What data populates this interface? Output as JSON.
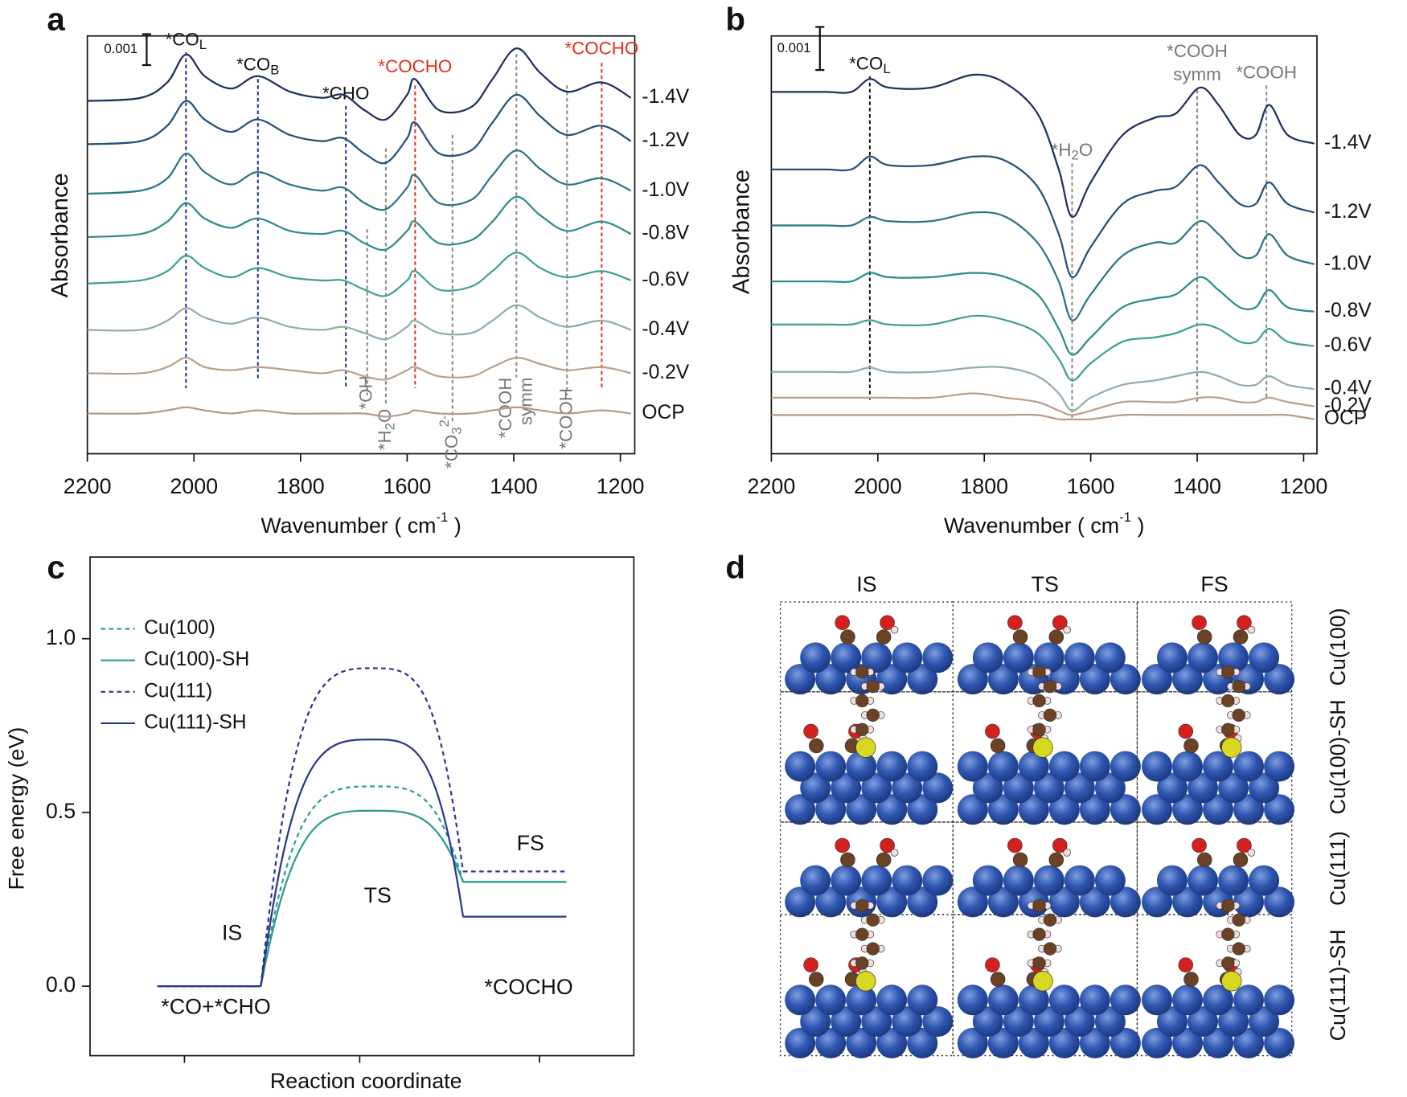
{
  "panel_labels": [
    "a",
    "b",
    "c",
    "d"
  ],
  "chart_data": [
    {
      "type": "line",
      "ylabel": "Absorbance",
      "xlabel": "Wavenumber ( cm",
      "xlabel_sup": "-1",
      "xlabel_end": " )",
      "xlim": [
        2200,
        1173
      ],
      "xticks": [
        2200,
        2000,
        1800,
        1600,
        1400,
        1200
      ],
      "ylim": [
        0,
        0.0135
      ],
      "scale_bar": {
        "value": 0.001,
        "label": "0.001"
      },
      "x": [
        2200,
        2100,
        2050,
        2015,
        1980,
        1930,
        1880,
        1820,
        1760,
        1720,
        1680,
        1640,
        1600,
        1585,
        1540,
        1480,
        1440,
        1395,
        1350,
        1300,
        1235,
        1180
      ],
      "series": [
        {
          "name": "OCP",
          "color": "#b89a86",
          "values": [
            0.0013,
            0.0013,
            0.0014,
            0.0015,
            0.0014,
            0.0013,
            0.0014,
            0.0013,
            0.0013,
            0.0013,
            0.0013,
            0.0012,
            0.0013,
            0.0014,
            0.0013,
            0.0013,
            0.0014,
            0.0015,
            0.0014,
            0.0013,
            0.0014,
            0.0013
          ]
        },
        {
          "name": "-0.2V",
          "color": "#b9a08c",
          "values": [
            0.0026,
            0.0026,
            0.0028,
            0.0031,
            0.0028,
            0.0027,
            0.0028,
            0.0027,
            0.0026,
            0.0027,
            0.0025,
            0.0024,
            0.0027,
            0.0028,
            0.0025,
            0.0025,
            0.0028,
            0.0031,
            0.0029,
            0.0027,
            0.0028,
            0.0026
          ]
        },
        {
          "name": "-0.4V",
          "color": "#8fb0a0",
          "values": [
            0.004,
            0.004,
            0.0043,
            0.0047,
            0.0044,
            0.0042,
            0.0044,
            0.0041,
            0.004,
            0.0041,
            0.0039,
            0.0037,
            0.0041,
            0.0043,
            0.0039,
            0.0039,
            0.0043,
            0.0048,
            0.0044,
            0.0041,
            0.0043,
            0.004
          ]
        },
        {
          "name": "-0.6V",
          "color": "#3fa090",
          "values": [
            0.0055,
            0.0056,
            0.0059,
            0.0064,
            0.006,
            0.0057,
            0.006,
            0.0057,
            0.0056,
            0.0056,
            0.0053,
            0.0051,
            0.0056,
            0.0059,
            0.0053,
            0.0054,
            0.0059,
            0.0065,
            0.006,
            0.0057,
            0.0059,
            0.0056
          ]
        },
        {
          "name": "-0.8V",
          "color": "#2a8c8a",
          "values": [
            0.007,
            0.0071,
            0.0075,
            0.0081,
            0.0076,
            0.0073,
            0.0076,
            0.0072,
            0.0071,
            0.0072,
            0.0068,
            0.0066,
            0.0072,
            0.0075,
            0.0068,
            0.0069,
            0.0075,
            0.0083,
            0.0077,
            0.0072,
            0.0075,
            0.0071
          ]
        },
        {
          "name": "-1.0V",
          "color": "#2a7585",
          "values": [
            0.0084,
            0.0085,
            0.0089,
            0.0097,
            0.0091,
            0.0087,
            0.0091,
            0.0087,
            0.0085,
            0.0086,
            0.0081,
            0.0079,
            0.0086,
            0.009,
            0.0081,
            0.0082,
            0.009,
            0.0098,
            0.0092,
            0.0087,
            0.0089,
            0.0085
          ]
        },
        {
          "name": "-1.2V",
          "color": "#24507a",
          "values": [
            0.01,
            0.0101,
            0.0106,
            0.0114,
            0.0108,
            0.0104,
            0.0108,
            0.0103,
            0.0101,
            0.0102,
            0.0097,
            0.0094,
            0.0102,
            0.0107,
            0.0097,
            0.0098,
            0.0107,
            0.0116,
            0.0109,
            0.0103,
            0.0106,
            0.0101
          ]
        },
        {
          "name": "-1.4V",
          "color": "#1c2f5e",
          "values": [
            0.0114,
            0.0115,
            0.012,
            0.0129,
            0.0122,
            0.0118,
            0.0122,
            0.0117,
            0.0115,
            0.0116,
            0.0111,
            0.0108,
            0.0116,
            0.0121,
            0.0111,
            0.0112,
            0.0121,
            0.0131,
            0.0123,
            0.0117,
            0.012,
            0.0115
          ]
        }
      ],
      "annotations": [
        {
          "x": 2015,
          "text": "*CO",
          "sub": "L",
          "color": "#1c2f8a",
          "label_color": "#111111",
          "position": "top"
        },
        {
          "x": 1880,
          "text": "*CO",
          "sub": "B",
          "color": "#1c2f8a",
          "label_color": "#111111",
          "position": "top"
        },
        {
          "x": 1715,
          "text": "*CHO",
          "color": "#1c2f8a",
          "label_color": "#111111",
          "position": "top"
        },
        {
          "x": 1585,
          "text": "*COCHO",
          "color": "#e0301e",
          "label_color": "#e0301e",
          "position": "top"
        },
        {
          "x": 1235,
          "text": "*COCHO",
          "color": "#e0301e",
          "label_color": "#e0301e",
          "position": "top"
        },
        {
          "x": 1675,
          "text": "*OH",
          "color": "#888888",
          "label_color": "#777777",
          "position": "bottom"
        },
        {
          "x": 1640,
          "text": "*H",
          "sub": "2",
          "text_end": "O",
          "color": "#888888",
          "label_color": "#777777",
          "position": "bottom"
        },
        {
          "x": 1515,
          "text": "*CO",
          "sub": "3",
          "sup": "2-",
          "color": "#888888",
          "label_color": "#777777",
          "position": "bottom"
        },
        {
          "x": 1395,
          "text": "*COOH",
          "text2": "symm",
          "color": "#888888",
          "label_color": "#777777",
          "position": "bottom"
        },
        {
          "x": 1300,
          "text": "*COOH",
          "color": "#888888",
          "label_color": "#777777",
          "position": "bottom"
        }
      ]
    },
    {
      "type": "line",
      "ylabel": "Absorbance",
      "xlabel": "Wavenumber ( cm",
      "xlabel_sup": "-1",
      "xlabel_end": " )",
      "xlim": [
        2200,
        1175
      ],
      "xticks": [
        2200,
        2000,
        1800,
        1600,
        1400,
        1200
      ],
      "ylim": [
        0,
        0.0097
      ],
      "scale_bar": {
        "value": 0.001,
        "label": "0.001"
      },
      "x": [
        2200,
        2100,
        2050,
        2015,
        1980,
        1900,
        1820,
        1760,
        1700,
        1660,
        1635,
        1600,
        1540,
        1480,
        1440,
        1395,
        1360,
        1320,
        1290,
        1265,
        1230,
        1180
      ],
      "series": [
        {
          "name": "OCP",
          "color": "#b89a86",
          "values": [
            0.0009,
            0.0009,
            0.0009,
            0.0009,
            0.0009,
            0.0009,
            0.0009,
            0.0009,
            0.0009,
            0.0008,
            0.0008,
            0.0008,
            0.0009,
            0.0009,
            0.0009,
            0.0009,
            0.0009,
            0.0009,
            0.0009,
            0.0009,
            0.0009,
            0.0008
          ]
        },
        {
          "name": "-0.2V",
          "color": "#b9a08c",
          "values": [
            0.0013,
            0.0013,
            0.0013,
            0.0013,
            0.0013,
            0.0013,
            0.0014,
            0.0013,
            0.0012,
            0.001,
            0.0009,
            0.001,
            0.0012,
            0.0012,
            0.0012,
            0.0013,
            0.0013,
            0.0012,
            0.0012,
            0.0013,
            0.0012,
            0.0011
          ]
        },
        {
          "name": "-0.4V",
          "color": "#8fb0a0",
          "values": [
            0.0019,
            0.0019,
            0.0019,
            0.002,
            0.0019,
            0.0019,
            0.002,
            0.002,
            0.0018,
            0.0014,
            0.001,
            0.0013,
            0.0016,
            0.0017,
            0.0018,
            0.0019,
            0.0018,
            0.0016,
            0.0016,
            0.0018,
            0.0016,
            0.0015
          ]
        },
        {
          "name": "-0.6V",
          "color": "#3fa090",
          "values": [
            0.003,
            0.003,
            0.003,
            0.0031,
            0.003,
            0.003,
            0.0032,
            0.0031,
            0.0028,
            0.0022,
            0.0017,
            0.0021,
            0.0026,
            0.0027,
            0.0028,
            0.003,
            0.0029,
            0.0026,
            0.0026,
            0.0029,
            0.0026,
            0.0025
          ]
        },
        {
          "name": "-0.8V",
          "color": "#2a8c8a",
          "values": [
            0.004,
            0.004,
            0.004,
            0.0042,
            0.0041,
            0.0041,
            0.0042,
            0.0041,
            0.0037,
            0.0029,
            0.0023,
            0.0027,
            0.0034,
            0.0036,
            0.0037,
            0.0041,
            0.0038,
            0.0034,
            0.0034,
            0.0038,
            0.0034,
            0.0033
          ]
        },
        {
          "name": "-1.0V",
          "color": "#2a7585",
          "values": [
            0.0053,
            0.0053,
            0.0053,
            0.0055,
            0.0054,
            0.0054,
            0.0056,
            0.0055,
            0.0049,
            0.004,
            0.0031,
            0.0037,
            0.0046,
            0.0049,
            0.0049,
            0.0054,
            0.0051,
            0.0046,
            0.0046,
            0.0051,
            0.0046,
            0.0044
          ]
        },
        {
          "name": "-1.2V",
          "color": "#24507a",
          "values": [
            0.0066,
            0.0066,
            0.0066,
            0.0069,
            0.0067,
            0.0067,
            0.0069,
            0.0068,
            0.0062,
            0.0051,
            0.0041,
            0.0048,
            0.0058,
            0.0061,
            0.0062,
            0.0067,
            0.0063,
            0.0058,
            0.0058,
            0.0063,
            0.0058,
            0.0056
          ]
        },
        {
          "name": "-1.4V",
          "color": "#1c2f5e",
          "values": [
            0.0084,
            0.0084,
            0.0084,
            0.0087,
            0.0085,
            0.0085,
            0.0088,
            0.0086,
            0.0079,
            0.0066,
            0.0055,
            0.0063,
            0.0074,
            0.0078,
            0.0079,
            0.0085,
            0.0081,
            0.0074,
            0.0074,
            0.0081,
            0.0074,
            0.0072
          ]
        }
      ],
      "annotations": [
        {
          "x": 2015,
          "text": "*CO",
          "sub": "L",
          "color": "#111111",
          "label_color": "#111111",
          "position": "top"
        },
        {
          "x": 1635,
          "text": "*H",
          "sub": "2",
          "text_end": "O",
          "color": "#888888",
          "label_color": "#777777",
          "position": "top"
        },
        {
          "x": 1400,
          "text": "*COOH",
          "text2": "symm",
          "color": "#888888",
          "label_color": "#777777",
          "position": "top"
        },
        {
          "x": 1270,
          "text": "*COOH",
          "color": "#888888",
          "label_color": "#777777",
          "position": "top"
        }
      ]
    },
    {
      "type": "profile",
      "ylabel": "Free energy (eV)",
      "xlabel": "Reaction coordinate",
      "ylim": [
        -0.2,
        1.235
      ],
      "yticks": [
        {
          "value": 0,
          "label": "0.0"
        },
        0.5,
        {
          "value": 1,
          "label": "1.0"
        }
      ],
      "categories": [
        "IS",
        "TS",
        "FS"
      ],
      "state_labels": [
        "*CO+*CHO",
        "*COCHO"
      ],
      "legend": "upper left",
      "series": [
        {
          "name": "Cu(100)",
          "color": "#2a9d8a",
          "dash": true,
          "values": [
            0,
            0.575,
            0.3
          ]
        },
        {
          "name": "Cu(100)-SH",
          "color": "#2a9d8a",
          "dash": false,
          "values": [
            0,
            0.505,
            0.3
          ]
        },
        {
          "name": "Cu(111)",
          "color": "#2a3590",
          "dash": true,
          "values": [
            0,
            0.915,
            0.33
          ]
        },
        {
          "name": "Cu(111)-SH",
          "color": "#2a3590",
          "dash": false,
          "values": [
            0,
            0.71,
            0.2
          ]
        }
      ]
    }
  ],
  "diagram": {
    "columns": [
      "IS",
      "TS",
      "FS"
    ],
    "rows": [
      "Cu(100)",
      "Cu(100)-SH",
      "Cu(111)",
      "Cu(111)-SH"
    ]
  }
}
